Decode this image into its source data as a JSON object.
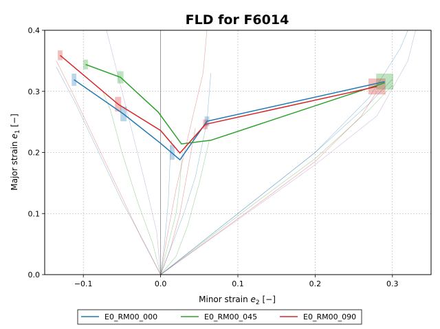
{
  "chart_data": {
    "type": "line",
    "title": "FLD for F6014",
    "xlabel": "Minor strain e2 [−]",
    "ylabel": "Major strain e1 [−]",
    "xlim": [
      -0.15,
      0.35
    ],
    "ylim": [
      0.0,
      0.4
    ],
    "xticks": [
      -0.1,
      0.0,
      0.1,
      0.2,
      0.3
    ],
    "xtick_labels": [
      "−0.1",
      "0.0",
      "0.1",
      "0.2",
      "0.3"
    ],
    "yticks": [
      0.0,
      0.1,
      0.2,
      0.3,
      0.4
    ],
    "ytick_labels": [
      "0.0",
      "0.1",
      "0.2",
      "0.3",
      "0.4"
    ],
    "grid": true,
    "legend_position": "bottom-outside",
    "series": [
      {
        "name": "E0_RM00_000",
        "color": "#1f77b4",
        "x": [
          -0.112,
          -0.048,
          0.0,
          0.025,
          0.06,
          0.29
        ],
        "y": [
          0.319,
          0.263,
          0.215,
          0.188,
          0.251,
          0.316
        ],
        "error_boxes": [
          {
            "x": -0.112,
            "y": 0.319,
            "dx": 0.003,
            "dy": 0.01
          },
          {
            "x": -0.048,
            "y": 0.263,
            "dx": 0.004,
            "dy": 0.012
          },
          {
            "x": 0.015,
            "y": 0.2,
            "dx": 0.003,
            "dy": 0.012
          },
          {
            "x": 0.06,
            "y": 0.251,
            "dx": 0.003,
            "dy": 0.008
          }
        ]
      },
      {
        "name": "E0_RM00_045",
        "color": "#2ca02c",
        "x": [
          -0.097,
          -0.052,
          -0.003,
          0.027,
          0.065,
          0.29
        ],
        "y": [
          0.344,
          0.323,
          0.266,
          0.214,
          0.22,
          0.314
        ],
        "error_boxes": [
          {
            "x": -0.097,
            "y": 0.344,
            "dx": 0.003,
            "dy": 0.008
          },
          {
            "x": -0.052,
            "y": 0.323,
            "dx": 0.004,
            "dy": 0.01
          },
          {
            "x": 0.29,
            "y": 0.316,
            "dx": 0.011,
            "dy": 0.013
          }
        ]
      },
      {
        "name": "E0_RM00_090",
        "color": "#d62728",
        "x": [
          -0.13,
          -0.055,
          0.0,
          0.025,
          0.058,
          0.28
        ],
        "y": [
          0.359,
          0.279,
          0.236,
          0.199,
          0.246,
          0.308
        ],
        "error_boxes": [
          {
            "x": -0.13,
            "y": 0.359,
            "dx": 0.003,
            "dy": 0.008
          },
          {
            "x": -0.055,
            "y": 0.279,
            "dx": 0.004,
            "dy": 0.012
          },
          {
            "x": 0.058,
            "y": 0.246,
            "dx": 0.003,
            "dy": 0.008
          },
          {
            "x": 0.28,
            "y": 0.308,
            "dx": 0.011,
            "dy": 0.013
          }
        ]
      }
    ],
    "strain_paths": [
      {
        "color": "#1f77b4",
        "points": [
          [
            0,
            0
          ],
          [
            -0.02,
            0.05
          ],
          [
            -0.05,
            0.12
          ],
          [
            -0.08,
            0.2
          ],
          [
            -0.11,
            0.28
          ],
          [
            -0.135,
            0.34
          ]
        ]
      },
      {
        "color": "#d62728",
        "points": [
          [
            0,
            0
          ],
          [
            -0.025,
            0.06
          ],
          [
            -0.055,
            0.14
          ],
          [
            -0.085,
            0.22
          ],
          [
            -0.115,
            0.3
          ],
          [
            -0.135,
            0.35
          ]
        ]
      },
      {
        "color": "#2ca02c",
        "points": [
          [
            0,
            0
          ],
          [
            -0.01,
            0.05
          ],
          [
            -0.03,
            0.12
          ],
          [
            -0.05,
            0.2
          ],
          [
            -0.065,
            0.27
          ],
          [
            -0.075,
            0.3
          ]
        ]
      },
      {
        "color": "#9467bd",
        "points": [
          [
            0,
            0
          ],
          [
            -0.005,
            0.07
          ],
          [
            -0.02,
            0.15
          ],
          [
            -0.04,
            0.25
          ],
          [
            -0.06,
            0.35
          ],
          [
            -0.07,
            0.4
          ]
        ]
      },
      {
        "color": "#1f77b4",
        "points": [
          [
            0,
            0
          ],
          [
            0.005,
            0.05
          ],
          [
            0.01,
            0.12
          ],
          [
            0.012,
            0.18
          ],
          [
            0.014,
            0.22
          ]
        ]
      },
      {
        "color": "#2ca02c",
        "points": [
          [
            0,
            0
          ],
          [
            0.01,
            0.05
          ],
          [
            0.02,
            0.1
          ],
          [
            0.025,
            0.15
          ],
          [
            0.028,
            0.2
          ]
        ]
      },
      {
        "color": "#d62728",
        "points": [
          [
            0,
            0
          ],
          [
            0.012,
            0.04
          ],
          [
            0.025,
            0.1
          ],
          [
            0.035,
            0.17
          ],
          [
            0.045,
            0.24
          ]
        ]
      },
      {
        "color": "#1f77b4",
        "points": [
          [
            0,
            0
          ],
          [
            0.015,
            0.05
          ],
          [
            0.03,
            0.1
          ],
          [
            0.045,
            0.16
          ],
          [
            0.06,
            0.25
          ],
          [
            0.065,
            0.33
          ]
        ]
      },
      {
        "color": "#2ca02c",
        "points": [
          [
            0,
            0
          ],
          [
            0.02,
            0.03
          ],
          [
            0.035,
            0.08
          ],
          [
            0.05,
            0.15
          ],
          [
            0.063,
            0.22
          ]
        ]
      },
      {
        "color": "#d62728",
        "points": [
          [
            0,
            0
          ],
          [
            0.008,
            0.06
          ],
          [
            0.02,
            0.14
          ],
          [
            0.04,
            0.25
          ],
          [
            0.055,
            0.33
          ],
          [
            0.06,
            0.4
          ]
        ]
      },
      {
        "color": "#1f77b4",
        "points": [
          [
            0,
            0
          ],
          [
            0.05,
            0.05
          ],
          [
            0.12,
            0.12
          ],
          [
            0.2,
            0.2
          ],
          [
            0.27,
            0.28
          ],
          [
            0.3,
            0.32
          ]
        ]
      },
      {
        "color": "#2ca02c",
        "points": [
          [
            0,
            0
          ],
          [
            0.05,
            0.048
          ],
          [
            0.12,
            0.115
          ],
          [
            0.2,
            0.19
          ],
          [
            0.27,
            0.27
          ],
          [
            0.3,
            0.31
          ]
        ]
      },
      {
        "color": "#d62728",
        "points": [
          [
            0,
            0
          ],
          [
            0.05,
            0.046
          ],
          [
            0.12,
            0.11
          ],
          [
            0.2,
            0.185
          ],
          [
            0.26,
            0.26
          ],
          [
            0.28,
            0.3
          ]
        ]
      },
      {
        "color": "#9467bd",
        "points": [
          [
            0,
            0
          ],
          [
            0.1,
            0.09
          ],
          [
            0.2,
            0.18
          ],
          [
            0.28,
            0.26
          ],
          [
            0.32,
            0.35
          ],
          [
            0.33,
            0.4
          ]
        ]
      },
      {
        "color": "#1f77b4",
        "points": [
          [
            0,
            0
          ],
          [
            0.1,
            0.1
          ],
          [
            0.2,
            0.2
          ],
          [
            0.27,
            0.29
          ],
          [
            0.31,
            0.37
          ],
          [
            0.32,
            0.4
          ]
        ]
      }
    ]
  }
}
